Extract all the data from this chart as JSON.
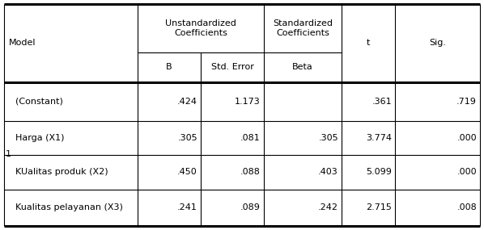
{
  "col_headers_row1": [
    "Model",
    "Unstandardized\nCoefficients",
    "Standardized\nCoefficients",
    "t",
    "Sig."
  ],
  "col_headers_row2": [
    "B",
    "Std. Error",
    "Beta"
  ],
  "rows": [
    [
      "(Constant)",
      ".424",
      "1.173",
      "",
      ".361",
      ".719"
    ],
    [
      "Harga (X1)",
      ".305",
      ".081",
      ".305",
      "3.774",
      ".000"
    ],
    [
      "KUalitas produk (X2)",
      ".450",
      ".088",
      ".403",
      "5.099",
      ".000"
    ],
    [
      "Kualitas pelayanan (X3)",
      ".241",
      ".089",
      ".242",
      "2.715",
      ".008"
    ]
  ],
  "model_label": "1",
  "bg_color": "#ffffff",
  "text_color": "#000000",
  "font_size": 8.0
}
